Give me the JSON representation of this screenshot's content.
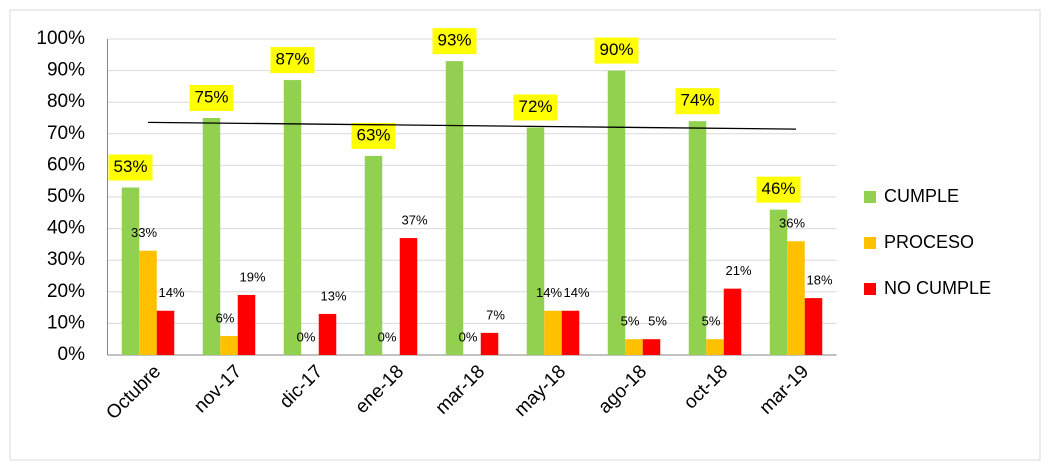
{
  "chart_data": {
    "type": "bar",
    "categories": [
      "Octubre",
      "nov-17",
      "dic-17",
      "ene-18",
      "mar-18",
      "may-18",
      "ago-18",
      "oct-18",
      "mar-19"
    ],
    "series": [
      {
        "name": "CUMPLE",
        "color": "#92d050",
        "values": [
          53,
          75,
          87,
          63,
          93,
          72,
          90,
          74,
          46
        ],
        "value_labels": [
          "53%",
          "75%",
          "87%",
          "63%",
          "93%",
          "72%",
          "90%",
          "74%",
          "46%"
        ]
      },
      {
        "name": "PROCESO",
        "color": "#ffc000",
        "values": [
          33,
          6,
          0,
          0,
          0,
          14,
          5,
          5,
          36
        ],
        "value_labels": [
          "33%",
          "6%",
          "0%",
          "0%",
          "0%",
          "14%",
          "5%",
          "5%",
          "36%"
        ]
      },
      {
        "name": "NO CUMPLE",
        "color": "#ff0000",
        "values": [
          14,
          19,
          13,
          37,
          7,
          14,
          5,
          21,
          18
        ],
        "value_labels": [
          "14%",
          "19%",
          "13%",
          "37%",
          "7%",
          "14%",
          "5%",
          "21%",
          "18%"
        ]
      }
    ],
    "ylim": [
      0,
      100
    ],
    "yticks": [
      {
        "value": 0,
        "label": "0%"
      },
      {
        "value": 10,
        "label": "10%"
      },
      {
        "value": 20,
        "label": "20%"
      },
      {
        "value": 30,
        "label": "30%"
      },
      {
        "value": 40,
        "label": "40%"
      },
      {
        "value": 50,
        "label": "50%"
      },
      {
        "value": 60,
        "label": "60%"
      },
      {
        "value": 70,
        "label": "70%"
      },
      {
        "value": 80,
        "label": "80%"
      },
      {
        "value": 90,
        "label": "90%"
      },
      {
        "value": 100,
        "label": "100%"
      }
    ],
    "grid": true,
    "trendline": true,
    "legend": "right"
  }
}
